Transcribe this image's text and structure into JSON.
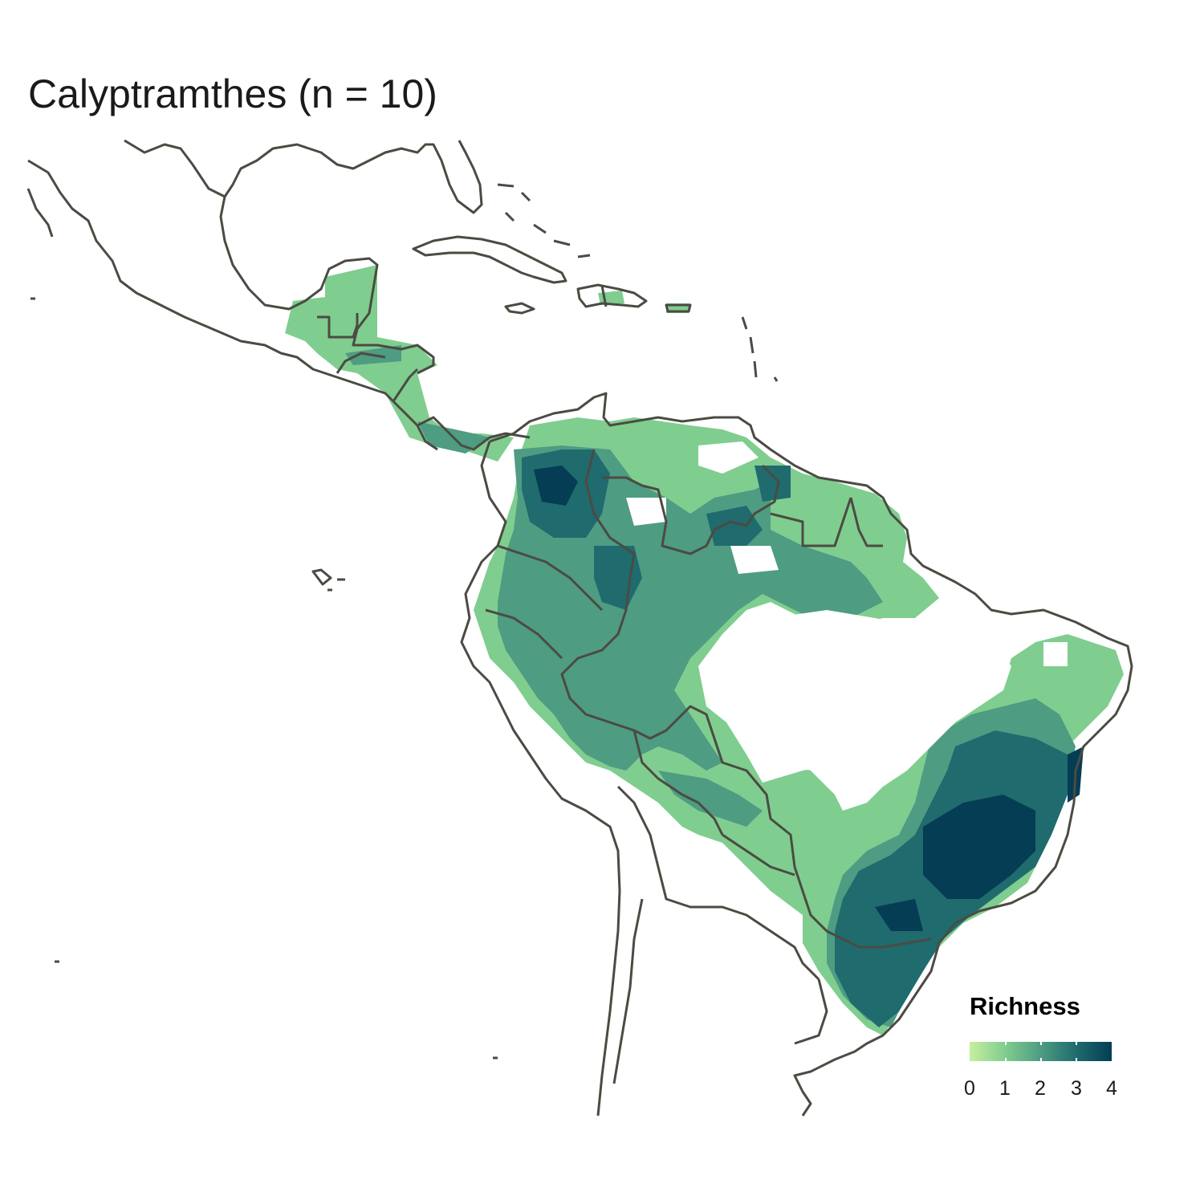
{
  "title": "Calyptramthes (n = 10)",
  "legend": {
    "title": "Richness",
    "ticks": [
      "0",
      "1",
      "2",
      "3",
      "4"
    ],
    "colors": [
      "#c7ef9d",
      "#80cd90",
      "#4e9c82",
      "#1f6b6e",
      "#043d54"
    ]
  },
  "map": {
    "region": "Latin America (Mexico to southern South America)",
    "border_color": "#4b4b43",
    "background": "#ffffff"
  }
}
